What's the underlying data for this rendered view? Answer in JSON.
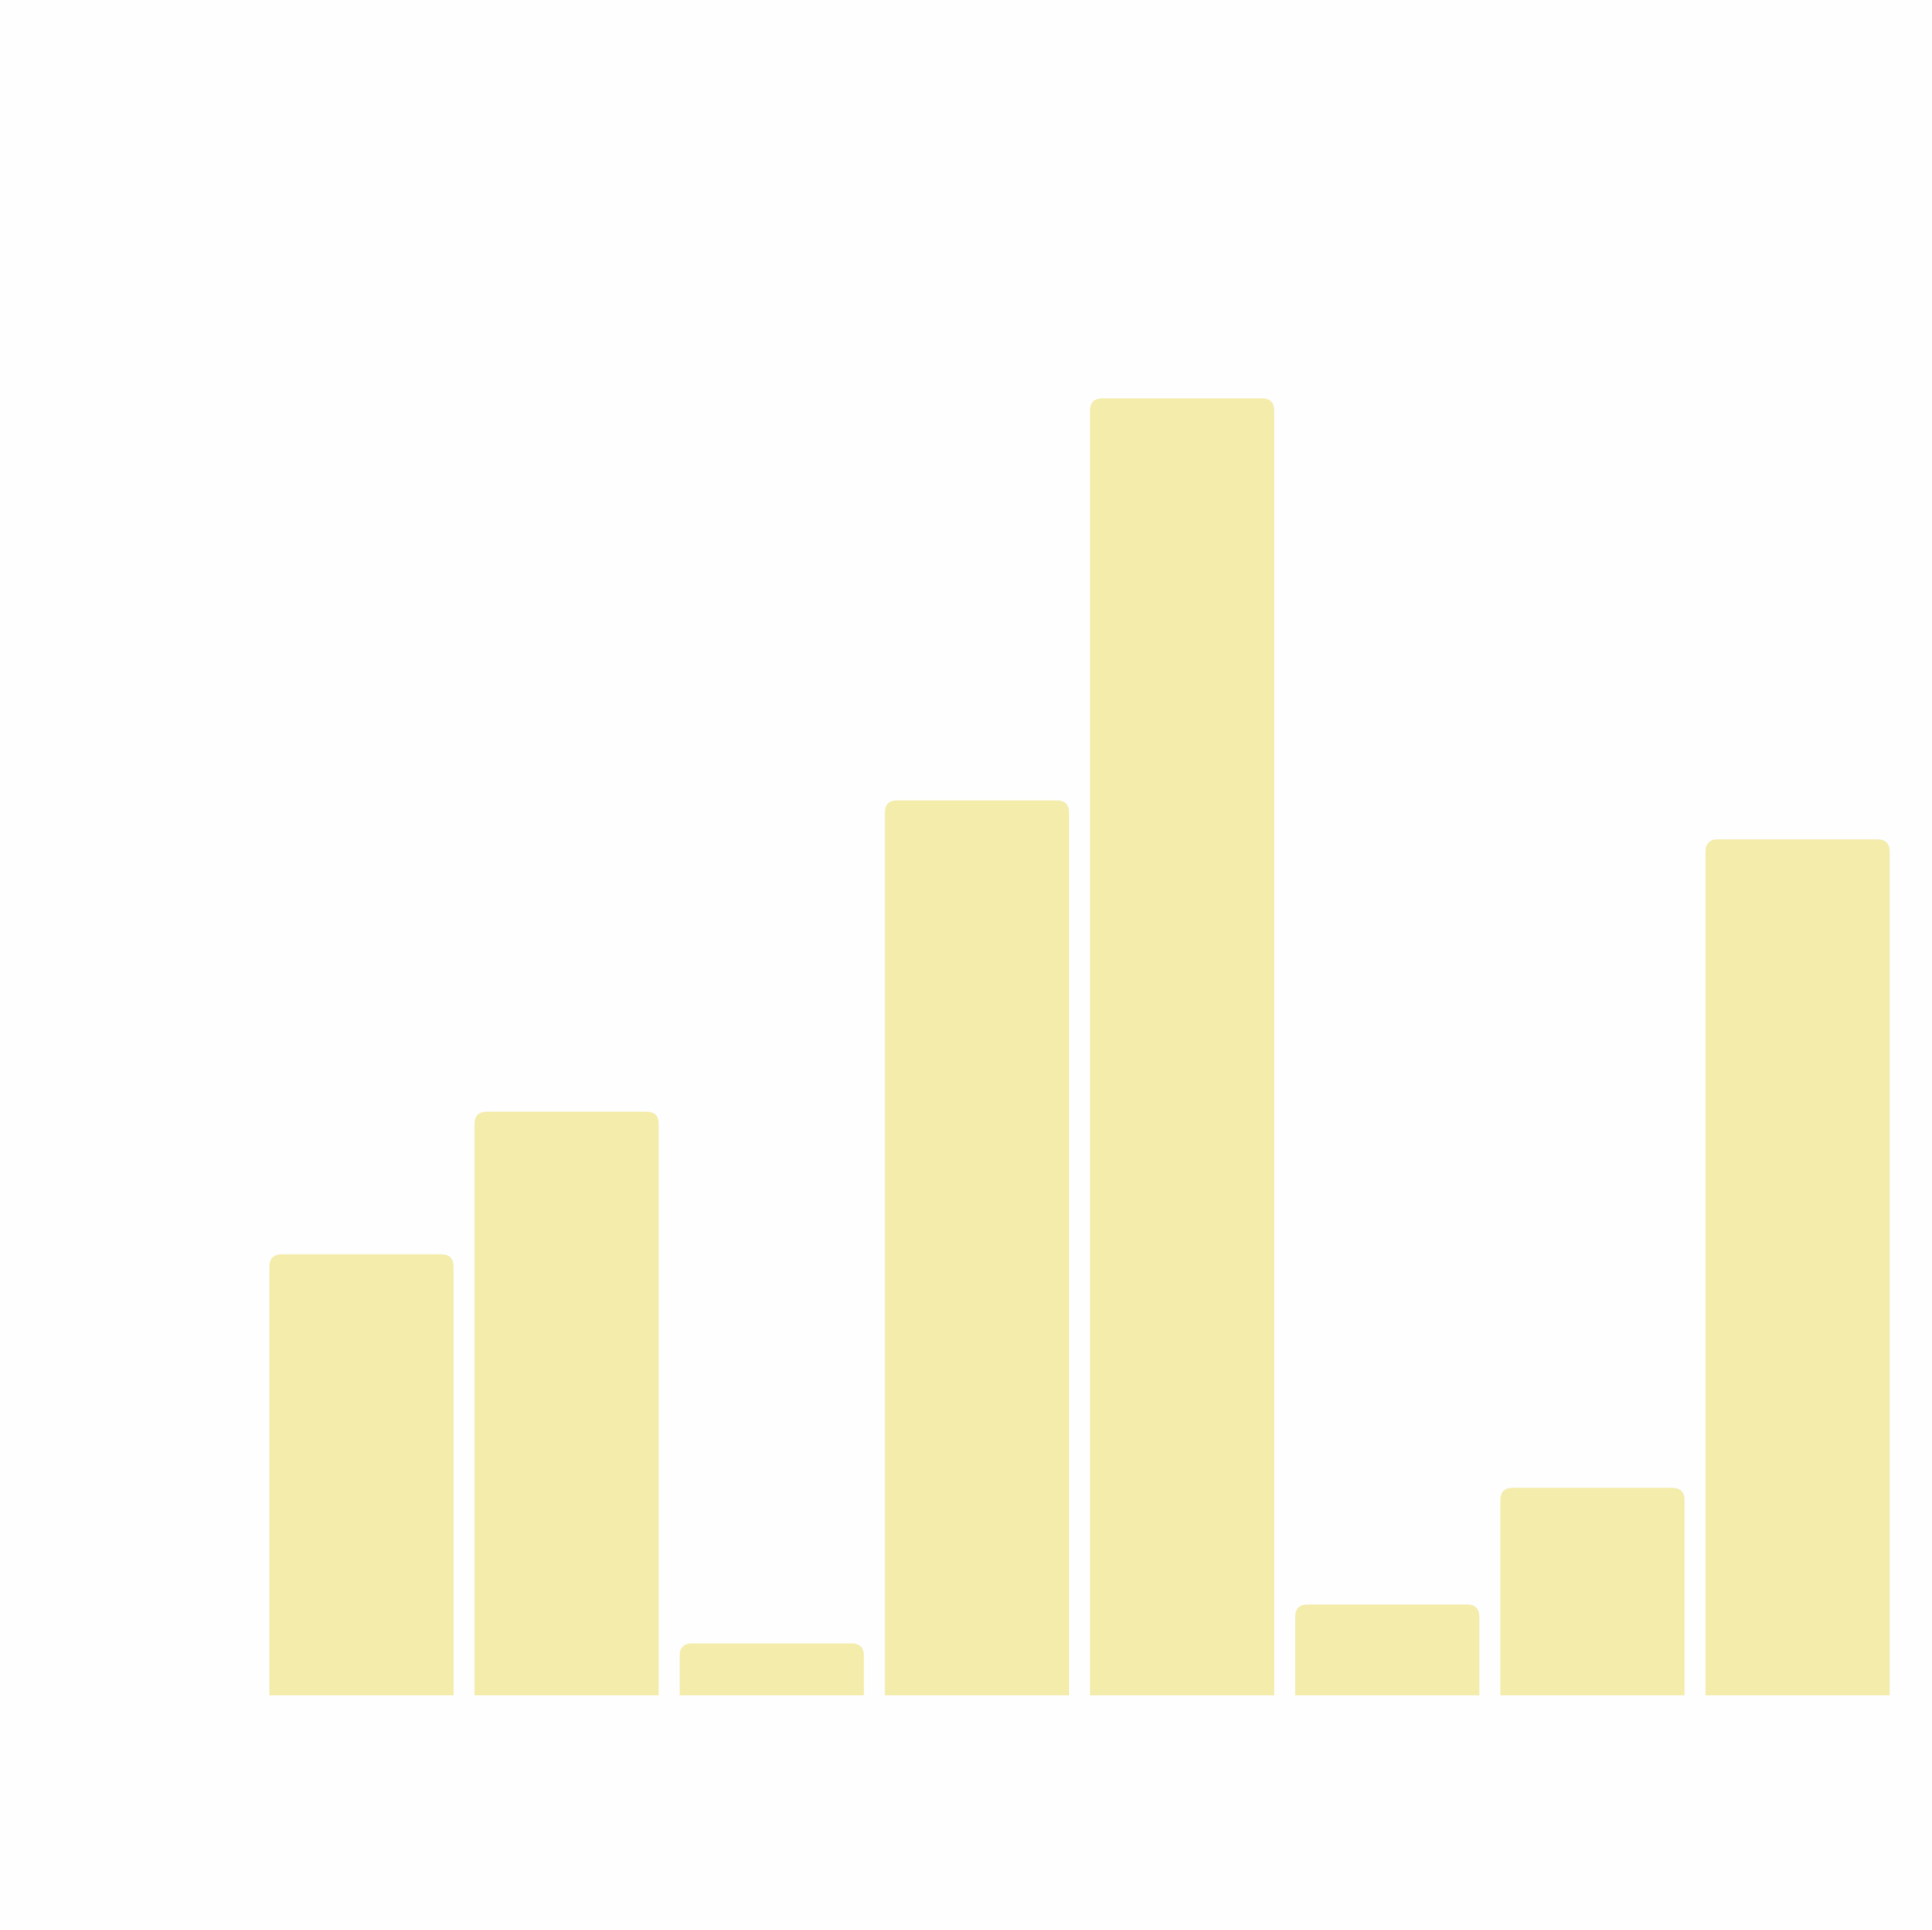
{
  "chart_data": {
    "type": "bar",
    "values": [
      34,
      45,
      4,
      69,
      100,
      7,
      16,
      66
    ],
    "color": "#f3ecab",
    "ylim": [
      0,
      110
    ]
  }
}
